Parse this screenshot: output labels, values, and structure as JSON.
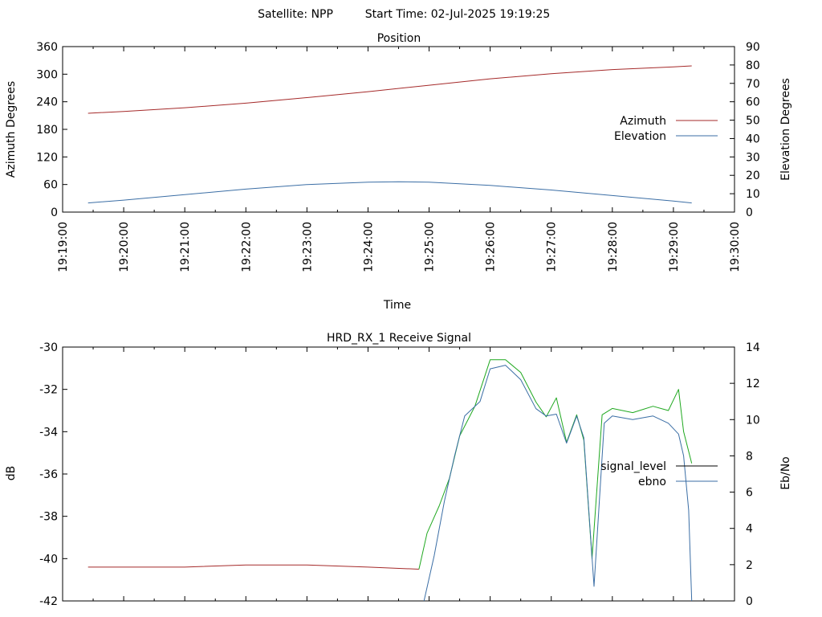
{
  "header": {
    "satellite": "Satellite: NPP",
    "start_time": "Start Time: 02-Jul-2025 19:19:25"
  },
  "chart_data": [
    {
      "type": "line",
      "title": "Position",
      "xlabel": "Time",
      "ylabel_left": "Azimuth Degrees",
      "ylabel_right": "Elevation Degrees",
      "x_ticks": [
        "19:19:00",
        "19:20:00",
        "19:21:00",
        "19:22:00",
        "19:23:00",
        "19:24:00",
        "19:25:00",
        "19:26:00",
        "19:27:00",
        "19:28:00",
        "19:29:00",
        "19:30:00"
      ],
      "xlim": [
        "19:19:00",
        "19:30:00"
      ],
      "ylim_left": [
        0,
        360
      ],
      "yticks_left": [
        0,
        60,
        120,
        180,
        240,
        300,
        360
      ],
      "ylim_right": [
        0,
        90
      ],
      "yticks_right": [
        0,
        10,
        20,
        30,
        40,
        50,
        60,
        70,
        80,
        90
      ],
      "legend_position": "right",
      "series": [
        {
          "name": "Azimuth",
          "axis": "left",
          "color": "#a52a2a",
          "x": [
            "19:19:25",
            "19:20:00",
            "19:21:00",
            "19:22:00",
            "19:23:00",
            "19:24:00",
            "19:25:00",
            "19:26:00",
            "19:27:00",
            "19:28:00",
            "19:29:00",
            "19:29:18"
          ],
          "y": [
            215,
            219,
            227,
            237,
            249,
            262,
            276,
            290,
            301,
            310,
            316,
            318
          ]
        },
        {
          "name": "Elevation",
          "axis": "right",
          "color": "#3b6ea5",
          "x": [
            "19:19:25",
            "19:20:00",
            "19:21:00",
            "19:22:00",
            "19:23:00",
            "19:24:00",
            "19:24:30",
            "19:25:00",
            "19:26:00",
            "19:27:00",
            "19:28:00",
            "19:29:00",
            "19:29:18"
          ],
          "y": [
            5,
            6.5,
            9.5,
            12.5,
            15,
            16.3,
            16.5,
            16.3,
            14.5,
            12,
            9,
            6,
            5
          ]
        }
      ]
    },
    {
      "type": "line",
      "title": "HRD_RX_1 Receive Signal",
      "ylabel_left": "dB",
      "ylabel_right": "Eb/No",
      "xlim": [
        "19:19:00",
        "19:30:00"
      ],
      "ylim_left": [
        -42,
        -30
      ],
      "yticks_left": [
        -42,
        -40,
        -38,
        -36,
        -34,
        -32,
        -30
      ],
      "ylim_right": [
        0,
        14
      ],
      "yticks_right": [
        0,
        2,
        4,
        6,
        8,
        10,
        12,
        14
      ],
      "legend_position": "right",
      "series": [
        {
          "name": "signal_level",
          "axis": "left",
          "color": "#000000",
          "segments": [
            {
              "color": "#a52a2a",
              "x": [
                "19:19:25",
                "19:20:00",
                "19:21:00",
                "19:22:00",
                "19:23:00",
                "19:24:00",
                "19:24:50"
              ],
              "y": [
                -40.4,
                -40.4,
                -40.4,
                -40.3,
                -40.3,
                -40.4,
                -40.5
              ]
            },
            {
              "color": "#1fa81f",
              "x": [
                "19:24:50",
                "19:24:58",
                "19:25:10",
                "19:25:20",
                "19:25:30",
                "19:25:45",
                "19:26:00",
                "19:26:15",
                "19:26:30",
                "19:26:45",
                "19:26:55",
                "19:27:05",
                "19:27:15",
                "19:27:25",
                "19:27:32",
                "19:27:40",
                "19:27:50",
                "19:28:00",
                "19:28:20",
                "19:28:40",
                "19:28:55",
                "19:29:05",
                "19:29:10",
                "19:29:18"
              ],
              "y": [
                -40.5,
                -38.8,
                -37.5,
                -36.2,
                -34.2,
                -32.8,
                -30.6,
                -30.6,
                -31.2,
                -32.6,
                -33.3,
                -32.4,
                -34.5,
                -33.2,
                -34.4,
                -40.0,
                -33.2,
                -32.9,
                -33.1,
                -32.8,
                -33.0,
                -32.0,
                -34.0,
                -35.5
              ]
            }
          ]
        },
        {
          "name": "ebno",
          "axis": "right",
          "color": "#3b6ea5",
          "x": [
            "19:24:55",
            "19:25:05",
            "19:25:15",
            "19:25:25",
            "19:25:35",
            "19:25:50",
            "19:26:00",
            "19:26:15",
            "19:26:30",
            "19:26:45",
            "19:26:55",
            "19:27:05",
            "19:27:15",
            "19:27:25",
            "19:27:32",
            "19:27:42",
            "19:27:52",
            "19:28:00",
            "19:28:20",
            "19:28:40",
            "19:28:55",
            "19:29:05",
            "19:29:10",
            "19:29:15",
            "19:29:18"
          ],
          "y": [
            0,
            2.5,
            5.5,
            8.0,
            10.2,
            11.0,
            12.8,
            13.0,
            12.2,
            10.6,
            10.2,
            10.3,
            8.7,
            10.2,
            9.0,
            0.8,
            9.8,
            10.2,
            10.0,
            10.2,
            9.8,
            9.2,
            8.0,
            5.0,
            0
          ]
        }
      ]
    }
  ]
}
